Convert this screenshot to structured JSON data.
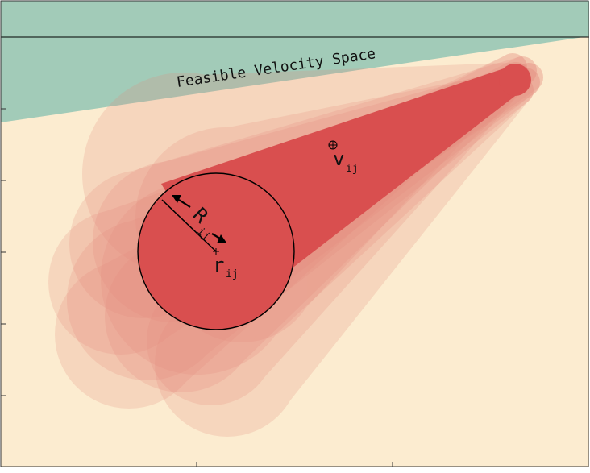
{
  "diagram": {
    "region_label": "Feasible Velocity Space",
    "radius_label": {
      "main": "R",
      "sub": "ij"
    },
    "center_label": {
      "main": "r",
      "sub": "ij"
    },
    "velocity_label": {
      "main": "v",
      "sub": "ij"
    },
    "colors": {
      "background": "#fcecd0",
      "feasible_region": "#a2cbb8",
      "cone_core": "#d94f4f",
      "cone_halo": "#e58a7d",
      "outline": "#000000"
    }
  }
}
